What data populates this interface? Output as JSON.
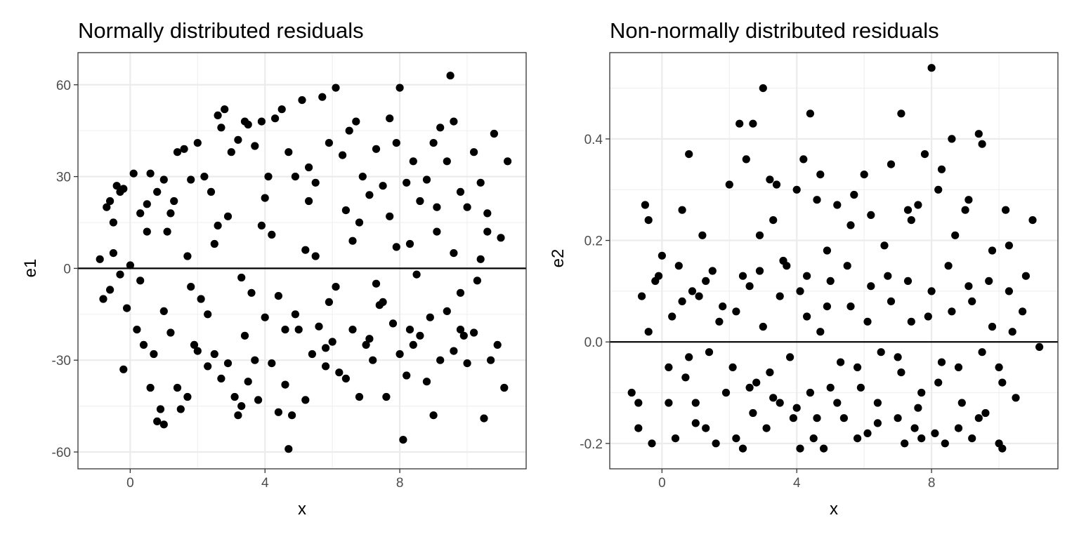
{
  "chart_data": [
    {
      "type": "scatter",
      "title": "Normally distributed residuals",
      "xlabel": "x",
      "ylabel": "e1",
      "xlim": [
        -1.55,
        11.75
      ],
      "ylim": [
        -65.5,
        70.5
      ],
      "xticks": [
        0,
        4,
        8
      ],
      "xtick_labels": [
        "0",
        "4",
        "8"
      ],
      "xminor": [
        2,
        6,
        10
      ],
      "yticks": [
        -60,
        -30,
        0,
        30,
        60
      ],
      "ytick_labels": [
        "-60",
        "-30",
        "0",
        "30",
        "60"
      ],
      "yminor": [
        -45,
        -15,
        15,
        45
      ],
      "hline": 0,
      "grid": true,
      "point_color": "#000000",
      "points": [
        [
          -0.9,
          3
        ],
        [
          -0.7,
          20
        ],
        [
          -0.6,
          22
        ],
        [
          -0.5,
          15
        ],
        [
          -0.4,
          27
        ],
        [
          -0.3,
          25
        ],
        [
          -0.2,
          26
        ],
        [
          0.0,
          1
        ],
        [
          0.1,
          31
        ],
        [
          0.3,
          18
        ],
        [
          0.5,
          21
        ],
        [
          0.6,
          31
        ],
        [
          0.8,
          25
        ],
        [
          1.0,
          29
        ],
        [
          1.2,
          18
        ],
        [
          1.4,
          38
        ],
        [
          1.6,
          39
        ],
        [
          1.8,
          29
        ],
        [
          2.0,
          41
        ],
        [
          2.2,
          30
        ],
        [
          2.4,
          25
        ],
        [
          2.6,
          50
        ],
        [
          2.7,
          46
        ],
        [
          2.8,
          52
        ],
        [
          3.0,
          38
        ],
        [
          3.2,
          42
        ],
        [
          3.4,
          48
        ],
        [
          3.5,
          47
        ],
        [
          3.7,
          40
        ],
        [
          3.9,
          48
        ],
        [
          4.1,
          30
        ],
        [
          4.3,
          49
        ],
        [
          4.5,
          52
        ],
        [
          4.7,
          38
        ],
        [
          4.9,
          30
        ],
        [
          5.1,
          55
        ],
        [
          5.3,
          33
        ],
        [
          5.5,
          28
        ],
        [
          5.7,
          56
        ],
        [
          5.9,
          41
        ],
        [
          6.1,
          59
        ],
        [
          6.3,
          37
        ],
        [
          6.5,
          45
        ],
        [
          6.7,
          48
        ],
        [
          6.9,
          30
        ],
        [
          7.1,
          24
        ],
        [
          7.3,
          39
        ],
        [
          7.5,
          27
        ],
        [
          7.7,
          49
        ],
        [
          7.9,
          41
        ],
        [
          8.0,
          59
        ],
        [
          8.2,
          28
        ],
        [
          8.4,
          35
        ],
        [
          8.6,
          22
        ],
        [
          8.8,
          29
        ],
        [
          9.0,
          41
        ],
        [
          9.2,
          46
        ],
        [
          9.4,
          35
        ],
        [
          9.5,
          63
        ],
        [
          9.6,
          48
        ],
        [
          9.8,
          25
        ],
        [
          10.0,
          20
        ],
        [
          10.2,
          38
        ],
        [
          10.4,
          28
        ],
        [
          10.6,
          18
        ],
        [
          10.8,
          44
        ],
        [
          11.0,
          10
        ],
        [
          11.2,
          35
        ],
        [
          -0.8,
          -10
        ],
        [
          -0.6,
          -7
        ],
        [
          -0.3,
          -2
        ],
        [
          -0.2,
          -33
        ],
        [
          -0.1,
          -13
        ],
        [
          0.2,
          -20
        ],
        [
          0.4,
          -25
        ],
        [
          0.6,
          -39
        ],
        [
          0.8,
          -50
        ],
        [
          0.9,
          -46
        ],
        [
          1.0,
          -51
        ],
        [
          1.2,
          -21
        ],
        [
          1.4,
          -39
        ],
        [
          1.5,
          -46
        ],
        [
          1.7,
          -42
        ],
        [
          1.9,
          -25
        ],
        [
          2.1,
          -10
        ],
        [
          2.3,
          -32
        ],
        [
          2.5,
          -28
        ],
        [
          2.7,
          -36
        ],
        [
          2.9,
          -31
        ],
        [
          3.1,
          -42
        ],
        [
          3.2,
          -48
        ],
        [
          3.3,
          -45
        ],
        [
          3.5,
          -37
        ],
        [
          3.7,
          -30
        ],
        [
          3.8,
          -43
        ],
        [
          4.0,
          -16
        ],
        [
          4.2,
          -31
        ],
        [
          4.4,
          -47
        ],
        [
          4.6,
          -38
        ],
        [
          4.7,
          -59
        ],
        [
          4.8,
          -48
        ],
        [
          5.0,
          -20
        ],
        [
          5.2,
          -43
        ],
        [
          5.4,
          -28
        ],
        [
          5.6,
          -19
        ],
        [
          5.8,
          -32
        ],
        [
          6.0,
          -24
        ],
        [
          6.2,
          -34
        ],
        [
          6.4,
          -36
        ],
        [
          6.6,
          -20
        ],
        [
          6.8,
          -42
        ],
        [
          7.0,
          -25
        ],
        [
          7.2,
          -30
        ],
        [
          7.4,
          -12
        ],
        [
          7.6,
          -42
        ],
        [
          7.8,
          -18
        ],
        [
          8.0,
          -28
        ],
        [
          8.1,
          -56
        ],
        [
          8.2,
          -35
        ],
        [
          8.4,
          -25
        ],
        [
          8.6,
          -22
        ],
        [
          8.8,
          -37
        ],
        [
          9.0,
          -48
        ],
        [
          9.2,
          -30
        ],
        [
          9.4,
          -14
        ],
        [
          9.6,
          -27
        ],
        [
          9.8,
          -20
        ],
        [
          10.0,
          -31
        ],
        [
          10.2,
          -21
        ],
        [
          10.5,
          -49
        ],
        [
          10.7,
          -30
        ],
        [
          10.9,
          -25
        ],
        [
          11.1,
          -39
        ],
        [
          -0.5,
          5
        ],
        [
          0.3,
          -4
        ],
        [
          1.1,
          12
        ],
        [
          1.8,
          -6
        ],
        [
          2.5,
          8
        ],
        [
          3.3,
          -3
        ],
        [
          3.9,
          14
        ],
        [
          4.4,
          -9
        ],
        [
          5.2,
          6
        ],
        [
          5.9,
          -11
        ],
        [
          6.6,
          9
        ],
        [
          7.3,
          -5
        ],
        [
          7.9,
          7
        ],
        [
          8.5,
          -2
        ],
        [
          9.1,
          12
        ],
        [
          9.8,
          -8
        ],
        [
          10.4,
          3
        ],
        [
          0.5,
          12
        ],
        [
          1.0,
          -14
        ],
        [
          1.7,
          4
        ],
        [
          2.3,
          -15
        ],
        [
          2.9,
          17
        ],
        [
          3.6,
          -8
        ],
        [
          4.2,
          11
        ],
        [
          4.9,
          -15
        ],
        [
          5.5,
          4
        ],
        [
          6.1,
          -6
        ],
        [
          6.8,
          15
        ],
        [
          7.5,
          -11
        ],
        [
          8.3,
          8
        ],
        [
          8.9,
          -16
        ],
        [
          9.6,
          5
        ],
        [
          10.3,
          -4
        ],
        [
          0.7,
          -28
        ],
        [
          1.3,
          22
        ],
        [
          2.0,
          -27
        ],
        [
          2.6,
          14
        ],
        [
          3.4,
          -22
        ],
        [
          4.0,
          23
        ],
        [
          4.6,
          -20
        ],
        [
          5.3,
          22
        ],
        [
          5.8,
          -26
        ],
        [
          6.4,
          19
        ],
        [
          7.1,
          -23
        ],
        [
          7.7,
          17
        ],
        [
          8.3,
          -20
        ],
        [
          9.1,
          20
        ],
        [
          9.9,
          -22
        ],
        [
          10.6,
          12
        ]
      ]
    },
    {
      "type": "scatter",
      "title": "Non-normally distributed residuals",
      "xlabel": "x",
      "ylabel": "e2",
      "xlim": [
        -1.55,
        11.75
      ],
      "ylim": [
        -0.25,
        0.57
      ],
      "xticks": [
        0,
        4,
        8
      ],
      "xtick_labels": [
        "0",
        "4",
        "8"
      ],
      "xminor": [
        2,
        6,
        10
      ],
      "yticks": [
        -0.2,
        0.0,
        0.2,
        0.4
      ],
      "ytick_labels": [
        "-0.2",
        "0.0",
        "0.2",
        "0.4"
      ],
      "yminor": [
        -0.1,
        0.1,
        0.3,
        0.5
      ],
      "hline": 0,
      "grid": true,
      "point_color": "#000000",
      "points": [
        [
          -0.9,
          -0.1
        ],
        [
          -0.7,
          -0.17
        ],
        [
          -0.6,
          0.09
        ],
        [
          -0.5,
          0.27
        ],
        [
          -0.4,
          0.24
        ],
        [
          -0.3,
          -0.2
        ],
        [
          -0.2,
          0.12
        ],
        [
          0.0,
          0.17
        ],
        [
          0.2,
          -0.05
        ],
        [
          0.4,
          -0.19
        ],
        [
          0.6,
          0.26
        ],
        [
          0.7,
          -0.07
        ],
        [
          0.8,
          0.37
        ],
        [
          0.9,
          0.1
        ],
        [
          1.0,
          -0.12
        ],
        [
          1.2,
          0.21
        ],
        [
          1.3,
          -0.17
        ],
        [
          1.5,
          0.14
        ],
        [
          1.6,
          -0.2
        ],
        [
          1.8,
          0.07
        ],
        [
          2.0,
          0.31
        ],
        [
          2.2,
          -0.19
        ],
        [
          2.3,
          0.43
        ],
        [
          2.4,
          -0.21
        ],
        [
          2.5,
          0.36
        ],
        [
          2.6,
          0.11
        ],
        [
          2.7,
          0.43
        ],
        [
          2.8,
          -0.08
        ],
        [
          2.9,
          0.21
        ],
        [
          3.0,
          0.5
        ],
        [
          3.1,
          -0.17
        ],
        [
          3.2,
          0.32
        ],
        [
          3.3,
          0.24
        ],
        [
          3.4,
          0.31
        ],
        [
          3.5,
          -0.12
        ],
        [
          3.7,
          0.15
        ],
        [
          3.9,
          -0.15
        ],
        [
          4.0,
          0.3
        ],
        [
          4.1,
          -0.21
        ],
        [
          4.2,
          0.36
        ],
        [
          4.3,
          0.13
        ],
        [
          4.4,
          0.45
        ],
        [
          4.5,
          -0.19
        ],
        [
          4.6,
          0.28
        ],
        [
          4.7,
          0.33
        ],
        [
          4.8,
          -0.21
        ],
        [
          4.9,
          0.18
        ],
        [
          5.0,
          -0.09
        ],
        [
          5.2,
          0.27
        ],
        [
          5.4,
          -0.15
        ],
        [
          5.6,
          0.23
        ],
        [
          5.7,
          0.29
        ],
        [
          5.8,
          -0.19
        ],
        [
          6.0,
          0.33
        ],
        [
          6.1,
          -0.18
        ],
        [
          6.2,
          0.25
        ],
        [
          6.4,
          -0.12
        ],
        [
          6.6,
          0.19
        ],
        [
          6.8,
          0.35
        ],
        [
          7.0,
          -0.15
        ],
        [
          7.1,
          0.45
        ],
        [
          7.2,
          -0.2
        ],
        [
          7.3,
          0.26
        ],
        [
          7.4,
          0.24
        ],
        [
          7.5,
          -0.17
        ],
        [
          7.6,
          0.27
        ],
        [
          7.7,
          -0.19
        ],
        [
          7.8,
          0.37
        ],
        [
          8.0,
          0.54
        ],
        [
          8.1,
          -0.18
        ],
        [
          8.2,
          0.3
        ],
        [
          8.3,
          0.34
        ],
        [
          8.4,
          -0.2
        ],
        [
          8.6,
          0.4
        ],
        [
          8.7,
          0.21
        ],
        [
          8.8,
          -0.17
        ],
        [
          9.0,
          0.26
        ],
        [
          9.1,
          0.28
        ],
        [
          9.2,
          -0.19
        ],
        [
          9.4,
          0.41
        ],
        [
          9.5,
          0.39
        ],
        [
          9.6,
          -0.14
        ],
        [
          9.8,
          0.18
        ],
        [
          10.0,
          -0.2
        ],
        [
          10.1,
          -0.21
        ],
        [
          10.2,
          0.26
        ],
        [
          10.3,
          0.19
        ],
        [
          10.5,
          -0.11
        ],
        [
          10.7,
          0.06
        ],
        [
          10.8,
          0.13
        ],
        [
          11.0,
          0.24
        ],
        [
          11.2,
          -0.01
        ],
        [
          -0.7,
          -0.12
        ],
        [
          -0.4,
          0.02
        ],
        [
          -0.1,
          0.13
        ],
        [
          0.3,
          0.05
        ],
        [
          0.5,
          0.15
        ],
        [
          0.8,
          -0.03
        ],
        [
          1.1,
          0.09
        ],
        [
          1.4,
          -0.02
        ],
        [
          1.7,
          0.04
        ],
        [
          2.1,
          -0.05
        ],
        [
          2.4,
          0.13
        ],
        [
          2.7,
          -0.14
        ],
        [
          3.0,
          0.03
        ],
        [
          3.2,
          -0.06
        ],
        [
          3.5,
          0.09
        ],
        [
          3.8,
          -0.03
        ],
        [
          4.1,
          0.1
        ],
        [
          4.4,
          -0.1
        ],
        [
          4.7,
          0.02
        ],
        [
          5.0,
          0.12
        ],
        [
          5.3,
          -0.04
        ],
        [
          5.6,
          0.07
        ],
        [
          5.9,
          -0.09
        ],
        [
          6.2,
          0.11
        ],
        [
          6.5,
          -0.02
        ],
        [
          6.8,
          0.08
        ],
        [
          7.1,
          -0.06
        ],
        [
          7.4,
          0.04
        ],
        [
          7.7,
          -0.1
        ],
        [
          8.0,
          0.1
        ],
        [
          8.3,
          -0.04
        ],
        [
          8.6,
          0.06
        ],
        [
          8.9,
          -0.12
        ],
        [
          9.2,
          0.08
        ],
        [
          9.5,
          -0.02
        ],
        [
          9.8,
          0.03
        ],
        [
          10.1,
          -0.08
        ],
        [
          10.4,
          0.02
        ],
        [
          0.2,
          -0.12
        ],
        [
          0.6,
          0.08
        ],
        [
          1.0,
          -0.16
        ],
        [
          1.3,
          0.12
        ],
        [
          1.9,
          -0.1
        ],
        [
          2.2,
          0.06
        ],
        [
          2.6,
          -0.09
        ],
        [
          2.9,
          0.14
        ],
        [
          3.3,
          -0.11
        ],
        [
          3.6,
          0.16
        ],
        [
          4.0,
          -0.13
        ],
        [
          4.3,
          0.05
        ],
        [
          4.6,
          -0.15
        ],
        [
          4.9,
          0.07
        ],
        [
          5.2,
          -0.12
        ],
        [
          5.5,
          0.15
        ],
        [
          5.8,
          -0.05
        ],
        [
          6.1,
          0.04
        ],
        [
          6.4,
          -0.16
        ],
        [
          6.7,
          0.13
        ],
        [
          7.0,
          -0.03
        ],
        [
          7.3,
          0.12
        ],
        [
          7.6,
          -0.13
        ],
        [
          7.9,
          0.05
        ],
        [
          8.2,
          -0.08
        ],
        [
          8.5,
          0.15
        ],
        [
          8.8,
          -0.05
        ],
        [
          9.1,
          0.11
        ],
        [
          9.4,
          -0.15
        ],
        [
          9.7,
          0.12
        ],
        [
          10.0,
          -0.05
        ],
        [
          10.3,
          0.1
        ]
      ]
    }
  ]
}
